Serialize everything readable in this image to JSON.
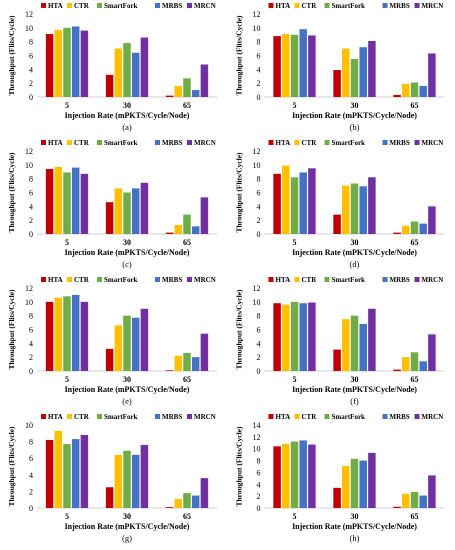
{
  "figure": {
    "legend_labels": [
      "HTA",
      "CTR",
      "SmartFork",
      "MRBS",
      "MRCN"
    ],
    "colors": [
      "#c00000",
      "#ffc000",
      "#70ad47",
      "#4472c4",
      "#7030a0"
    ]
  },
  "chart_data": [
    {
      "type": "bar",
      "panel": "(a)",
      "categories": [
        "5",
        "30",
        "65"
      ],
      "xlabel": "Injection Rate (mPKTS/Cycle/Node)",
      "ylabel": "Throughput (Flits/Cycle)",
      "ylim": [
        0,
        12
      ],
      "yticks": [
        0,
        2,
        4,
        6,
        8,
        10,
        12
      ],
      "legend": "top",
      "series": [
        {
          "name": "HTA",
          "values": [
            9.1,
            3.2,
            0.2
          ]
        },
        {
          "name": "CTR",
          "values": [
            9.7,
            7.0,
            1.6
          ]
        },
        {
          "name": "SmartFork",
          "values": [
            10.0,
            7.8,
            2.7
          ]
        },
        {
          "name": "MRBS",
          "values": [
            10.2,
            6.4,
            1.0
          ]
        },
        {
          "name": "MRCN",
          "values": [
            9.6,
            8.6,
            4.7
          ]
        }
      ]
    },
    {
      "type": "bar",
      "panel": "(b)",
      "categories": [
        "5",
        "30",
        "65"
      ],
      "xlabel": "Injection Rate (mPKTS/Cycle/Node)",
      "ylabel": "Throughput (Flits/Cycle)",
      "ylim": [
        0,
        12
      ],
      "yticks": [
        0,
        2,
        4,
        6,
        8,
        10,
        12
      ],
      "legend": "top",
      "series": [
        {
          "name": "HTA",
          "values": [
            8.8,
            3.9,
            0.3
          ]
        },
        {
          "name": "CTR",
          "values": [
            9.1,
            7.0,
            1.9
          ]
        },
        {
          "name": "SmartFork",
          "values": [
            9.0,
            5.5,
            2.1
          ]
        },
        {
          "name": "MRBS",
          "values": [
            9.8,
            7.2,
            1.6
          ]
        },
        {
          "name": "MRCN",
          "values": [
            8.9,
            8.1,
            6.3
          ]
        }
      ]
    },
    {
      "type": "bar",
      "panel": "(c)",
      "categories": [
        "5",
        "30",
        "65"
      ],
      "xlabel": "Injection Rate (mPKTS/Cycle/Node)",
      "ylabel": "Throughput (Flits/Cycle)",
      "ylim": [
        0,
        12
      ],
      "yticks": [
        0,
        2,
        4,
        6,
        8,
        10,
        12
      ],
      "legend": "top",
      "series": [
        {
          "name": "HTA",
          "values": [
            9.4,
            4.6,
            0.2
          ]
        },
        {
          "name": "CTR",
          "values": [
            9.7,
            6.6,
            1.3
          ]
        },
        {
          "name": "SmartFork",
          "values": [
            8.9,
            6.0,
            2.8
          ]
        },
        {
          "name": "MRBS",
          "values": [
            9.6,
            6.6,
            1.1
          ]
        },
        {
          "name": "MRCN",
          "values": [
            8.7,
            7.4,
            5.3
          ]
        }
      ]
    },
    {
      "type": "bar",
      "panel": "(d)",
      "categories": [
        "5",
        "30",
        "65"
      ],
      "xlabel": "Injection Rate (mPKTS/Cycle/Node)",
      "ylabel": "Throughput (Flits/Cycle)",
      "ylim": [
        0,
        12
      ],
      "yticks": [
        0,
        2,
        4,
        6,
        8,
        10,
        12
      ],
      "legend": "top",
      "series": [
        {
          "name": "HTA",
          "values": [
            8.7,
            2.8,
            0.2
          ]
        },
        {
          "name": "CTR",
          "values": [
            9.9,
            7.0,
            1.2
          ]
        },
        {
          "name": "SmartFork",
          "values": [
            8.2,
            7.3,
            1.8
          ]
        },
        {
          "name": "MRBS",
          "values": [
            8.9,
            6.9,
            1.5
          ]
        },
        {
          "name": "MRCN",
          "values": [
            9.5,
            8.2,
            4.0
          ]
        }
      ]
    },
    {
      "type": "bar",
      "panel": "(e)",
      "categories": [
        "5",
        "30",
        "65"
      ],
      "xlabel": "Injection Rate (mPKTS/Cycle/Node)",
      "ylabel": "Throughput (Flits/Cycle)",
      "ylim": [
        0,
        12
      ],
      "yticks": [
        0,
        2,
        4,
        6,
        8,
        10,
        12
      ],
      "legend": "top",
      "series": [
        {
          "name": "HTA",
          "values": [
            10.0,
            3.2,
            0.1
          ]
        },
        {
          "name": "CTR",
          "values": [
            10.6,
            6.6,
            2.2
          ]
        },
        {
          "name": "SmartFork",
          "values": [
            10.8,
            8.0,
            2.6
          ]
        },
        {
          "name": "MRBS",
          "values": [
            11.0,
            7.7,
            2.0
          ]
        },
        {
          "name": "MRCN",
          "values": [
            10.0,
            9.0,
            5.4
          ]
        }
      ]
    },
    {
      "type": "bar",
      "panel": "(f)",
      "categories": [
        "5",
        "30",
        "65"
      ],
      "xlabel": "Injection Rate (mPKTS/Cycle/Node)",
      "ylabel": "Throughput (Flits/Cycle)",
      "ylim": [
        0,
        12
      ],
      "yticks": [
        0,
        2,
        4,
        6,
        8,
        10,
        12
      ],
      "legend": "top",
      "series": [
        {
          "name": "HTA",
          "values": [
            9.8,
            3.1,
            0.2
          ]
        },
        {
          "name": "CTR",
          "values": [
            9.6,
            7.5,
            2.0
          ]
        },
        {
          "name": "SmartFork",
          "values": [
            10.0,
            8.0,
            2.7
          ]
        },
        {
          "name": "MRBS",
          "values": [
            9.8,
            6.8,
            1.4
          ]
        },
        {
          "name": "MRCN",
          "values": [
            9.9,
            9.0,
            5.3
          ]
        }
      ]
    },
    {
      "type": "bar",
      "panel": "(g)",
      "categories": [
        "5",
        "30",
        "65"
      ],
      "xlabel": "Injection Rate (mPKTS/Cycle/Node)",
      "ylabel": "Throughput (Flits/Cycle)",
      "ylim": [
        0,
        10
      ],
      "yticks": [
        0,
        2,
        4,
        6,
        8,
        10
      ],
      "legend": "top",
      "series": [
        {
          "name": "HTA",
          "values": [
            8.2,
            2.5,
            0.1
          ]
        },
        {
          "name": "CTR",
          "values": [
            9.3,
            6.4,
            1.1
          ]
        },
        {
          "name": "SmartFork",
          "values": [
            7.7,
            6.9,
            1.8
          ]
        },
        {
          "name": "MRBS",
          "values": [
            8.3,
            6.4,
            1.5
          ]
        },
        {
          "name": "MRCN",
          "values": [
            8.8,
            7.6,
            3.6
          ]
        }
      ]
    },
    {
      "type": "bar",
      "panel": "(h)",
      "categories": [
        "5",
        "30",
        "65"
      ],
      "xlabel": "Injection Rate (mPKTS/Cycle/Node)",
      "ylabel": "Throughput (Flits/Cycle)",
      "ylim": [
        0,
        14
      ],
      "yticks": [
        0,
        2,
        4,
        6,
        8,
        10,
        12,
        14
      ],
      "legend": "top",
      "series": [
        {
          "name": "HTA",
          "values": [
            10.4,
            3.4,
            0.2
          ]
        },
        {
          "name": "CTR",
          "values": [
            10.8,
            7.1,
            2.4
          ]
        },
        {
          "name": "SmartFork",
          "values": [
            11.2,
            8.3,
            2.7
          ]
        },
        {
          "name": "MRBS",
          "values": [
            11.4,
            8.0,
            2.1
          ]
        },
        {
          "name": "MRCN",
          "values": [
            10.7,
            9.3,
            5.5
          ]
        }
      ]
    }
  ]
}
